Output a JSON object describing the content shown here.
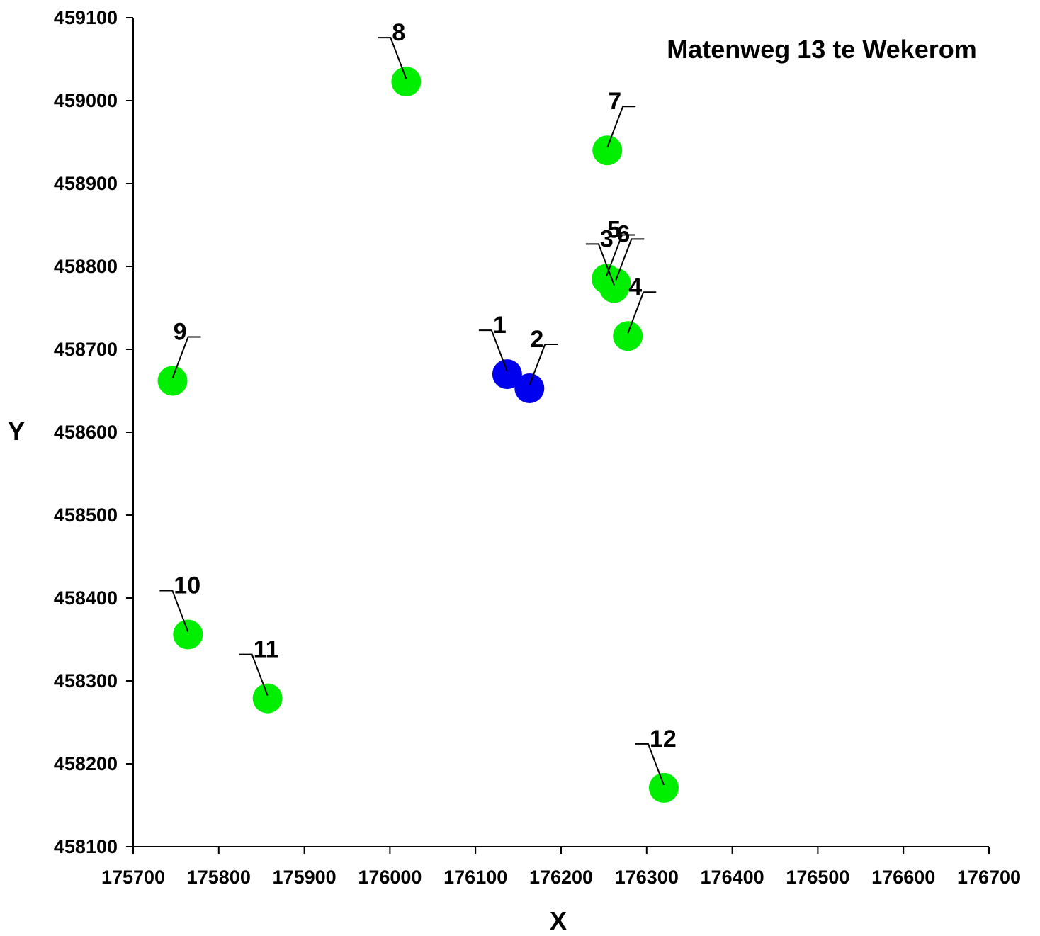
{
  "chart_data": {
    "type": "scatter",
    "title": "Matenweg 13 te Wekerom",
    "xlabel": "X",
    "ylabel": "Y",
    "xlim": [
      175700,
      176700
    ],
    "ylim": [
      458100,
      459100
    ],
    "x_ticks": [
      175700,
      175800,
      175900,
      176000,
      176100,
      176200,
      176300,
      176400,
      176500,
      176600,
      176700
    ],
    "y_ticks": [
      458100,
      458200,
      458300,
      458400,
      458500,
      458600,
      458700,
      458800,
      458900,
      459000,
      459100
    ],
    "grid": false,
    "legend": "none",
    "series": [
      {
        "color": "#0000ee",
        "points": [
          {
            "label": "1",
            "x": 176137,
            "y": 458670,
            "label_side": "left"
          },
          {
            "label": "2",
            "x": 176163,
            "y": 458653,
            "label_side": "right"
          }
        ]
      },
      {
        "color": "#00ee00",
        "points": [
          {
            "label": "3",
            "x": 176262,
            "y": 458774,
            "label_side": "left"
          },
          {
            "label": "4",
            "x": 176278,
            "y": 458716,
            "label_side": "right"
          },
          {
            "label": "5",
            "x": 176253,
            "y": 458785,
            "label_side": "right"
          },
          {
            "label": "6",
            "x": 176264,
            "y": 458780,
            "label_side": "right"
          },
          {
            "label": "7",
            "x": 176254,
            "y": 458940,
            "label_side": "right"
          },
          {
            "label": "8",
            "x": 176019,
            "y": 459023,
            "label_side": "left"
          },
          {
            "label": "9",
            "x": 175746,
            "y": 458662,
            "label_side": "right"
          },
          {
            "label": "10",
            "x": 175764,
            "y": 458356,
            "label_side": "left"
          },
          {
            "label": "11",
            "x": 175857,
            "y": 458279,
            "label_side": "left"
          },
          {
            "label": "12",
            "x": 176320,
            "y": 458171,
            "label_side": "left"
          }
        ]
      }
    ]
  }
}
